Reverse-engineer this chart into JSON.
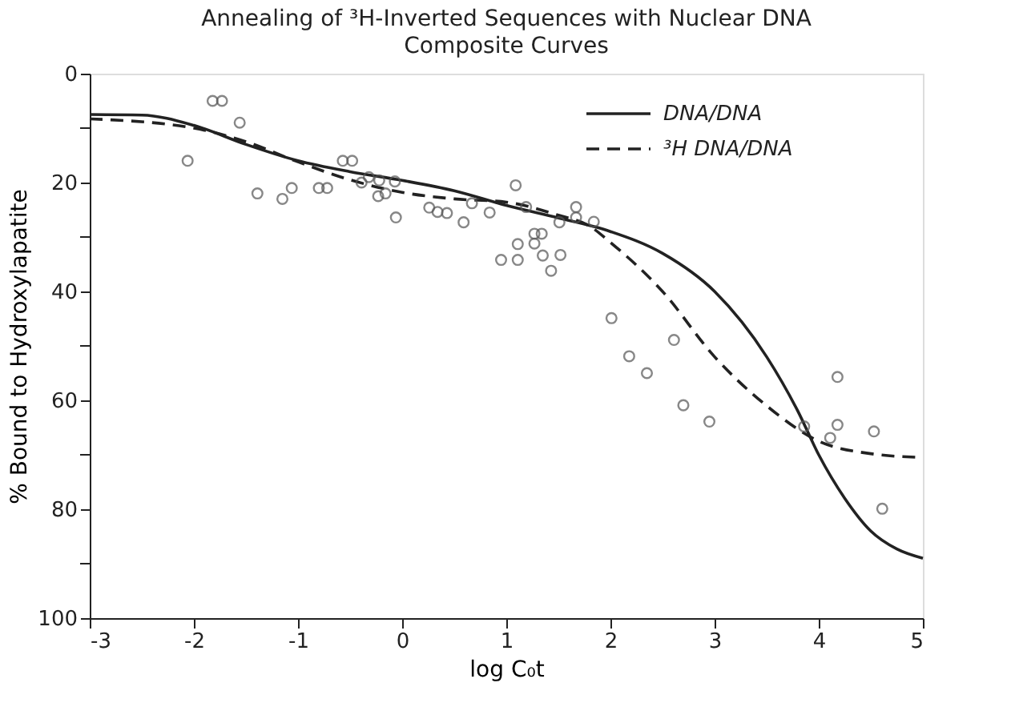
{
  "chart_data": {
    "type": "line",
    "title": "Annealing of ³H-Inverted Sequences with Nuclear DNA",
    "subtitle": "Composite Curves",
    "xlabel": "log C₀t",
    "ylabel": "% Bound to Hydroxylapatite",
    "xlim": [
      -3,
      5
    ],
    "xticks": [
      -3,
      -2,
      -1,
      0,
      1,
      2,
      3,
      4,
      5
    ],
    "ylim": [
      100,
      0
    ],
    "yticks": [
      0,
      {
        "value": 10,
        "label": null
      },
      20,
      {
        "value": 30,
        "label": null
      },
      40,
      {
        "value": 50,
        "label": null
      },
      60,
      {
        "value": 70,
        "label": null
      },
      80,
      {
        "value": 90,
        "label": null
      },
      100
    ],
    "grid": false,
    "legend": "top right",
    "series": [
      {
        "name": "DNA/DNA",
        "line_style": "solid",
        "color": "#222222",
        "x": [
          -3,
          -2.5,
          -2,
          -1.5,
          -1,
          -0.5,
          0,
          0.5,
          1,
          1.5,
          2,
          2.5,
          3,
          3.5,
          3.8,
          4,
          4.25,
          4.5,
          4.75,
          5
        ],
        "values": [
          7.5,
          7.6,
          9.5,
          13,
          16,
          18,
          19.6,
          21.5,
          24.2,
          26.5,
          29,
          33,
          40,
          52,
          62,
          70,
          78,
          84,
          87.3,
          89
        ]
      },
      {
        "name": "³H DNA/DNA",
        "line_style": "dashed",
        "color": "#222222",
        "x": [
          -3,
          -2,
          -1.5,
          -1,
          -0.5,
          0,
          0.5,
          1,
          1.5,
          1.8,
          2,
          2.5,
          3,
          3.5,
          4,
          4.5,
          5
        ],
        "values": [
          8.3,
          10,
          12.5,
          16.2,
          19.5,
          21.8,
          23,
          23.6,
          26,
          28,
          31,
          40,
          52,
          61,
          67.5,
          69.8,
          70.5
        ]
      },
      {
        "type": "scatter",
        "marker": "circle",
        "color": "#555555",
        "x": [
          -2.06,
          -1.82,
          -1.73,
          -1.56,
          -1.39,
          -1.15,
          -1.06,
          -0.8,
          -0.72,
          -0.57,
          -0.48,
          -0.39,
          -0.32,
          -0.23,
          -0.22,
          -0.16,
          -0.07,
          -0.06,
          0.26,
          0.34,
          0.43,
          0.59,
          0.67,
          0.84,
          0.95,
          1.09,
          1.11,
          1.11,
          1.19,
          1.27,
          1.27,
          1.34,
          1.35,
          1.43,
          1.51,
          1.52,
          1.67,
          1.67,
          1.84,
          2.01,
          2.18,
          2.35,
          2.61,
          2.7,
          2.95,
          3.86,
          4.11,
          4.18,
          4.18,
          4.53,
          4.61
        ],
        "values": [
          16,
          5,
          5,
          9,
          22,
          23,
          21,
          21,
          21,
          16,
          16,
          20,
          19,
          22.5,
          19.6,
          22,
          19.8,
          26.4,
          24.6,
          25.4,
          25.6,
          27.3,
          23.8,
          25.5,
          34.2,
          20.5,
          31.3,
          34.2,
          24.5,
          29.4,
          31.2,
          29.4,
          33.4,
          36.2,
          27.3,
          33.3,
          24.5,
          26.4,
          27.2,
          44.9,
          51.9,
          55,
          48.9,
          60.9,
          63.9,
          64.8,
          66.9,
          55.7,
          64.5,
          65.7,
          79.9
        ]
      }
    ]
  }
}
